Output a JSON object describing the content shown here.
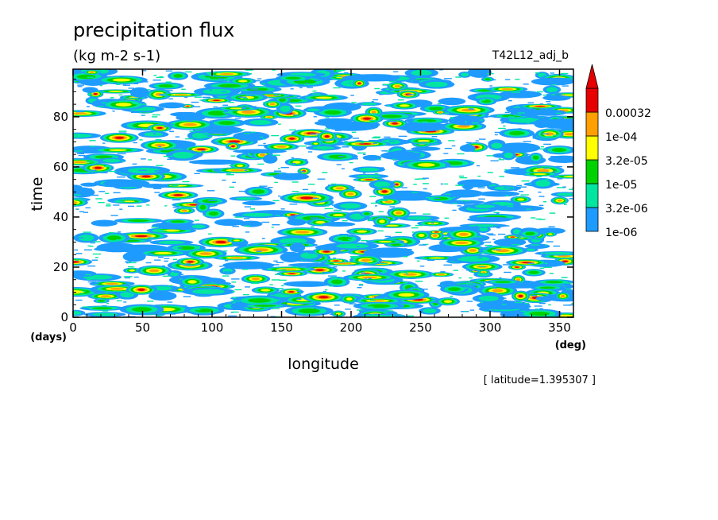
{
  "chart_data": {
    "type": "heatmap",
    "title": "precipitation flux",
    "units": "(kg m-2 s-1)",
    "experiment": "T42L12_adj_b",
    "xlabel": "longitude",
    "ylabel": "time",
    "x_unit": "(deg)",
    "y_unit": "(days)",
    "xlim": [
      0,
      360
    ],
    "ylim": [
      0,
      99
    ],
    "x_ticks": [
      "0",
      "50",
      "100",
      "150",
      "200",
      "250",
      "300",
      "350"
    ],
    "y_ticks": [
      "0",
      "20",
      "40",
      "60",
      "80"
    ],
    "footnote": "[ latitude=1.395307 ]",
    "legend_placement": "right",
    "levels": [
      {
        "label": "1e-06",
        "value": 1e-06,
        "color": "#1e9bff"
      },
      {
        "label": "3.2e-06",
        "value": 3.2e-06,
        "color": "#00e6a0"
      },
      {
        "label": "1e-05",
        "value": 1e-05,
        "color": "#00d200"
      },
      {
        "label": "3.2e-05",
        "value": 3.2e-05,
        "color": "#ffff00"
      },
      {
        "label": "1e-04",
        "value": 0.0001,
        "color": "#ffa000"
      },
      {
        "label": "0.00032",
        "value": 0.00032,
        "color": "#e60000"
      }
    ]
  }
}
